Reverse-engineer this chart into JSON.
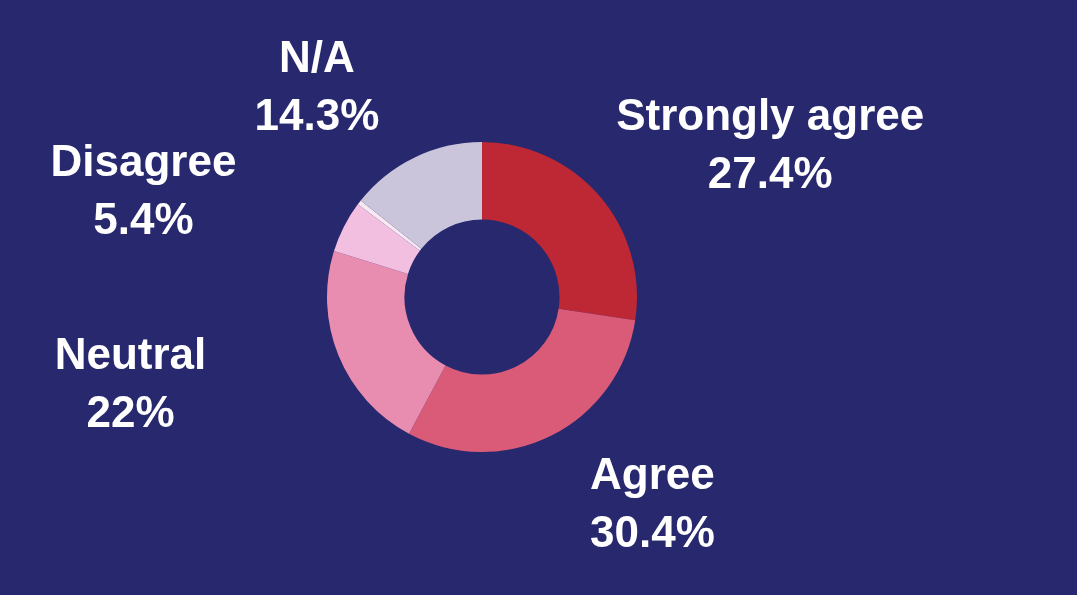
{
  "chart_data": {
    "type": "donut",
    "categories": [
      "Strongly agree",
      "Agree",
      "Neutral",
      "Disagree",
      null,
      "N/A"
    ],
    "values": [
      27.4,
      30.4,
      22,
      5.4,
      0.5,
      14.3
    ],
    "value_labels": [
      "27.4%",
      "30.4%",
      "22%",
      "5.4%",
      null,
      "14.3%"
    ],
    "colors": [
      "#bd2834",
      "#d95b77",
      "#e98db0",
      "#f2bfe0",
      "#f7e8f2",
      "#cbc5dc"
    ],
    "legend": false
  }
}
